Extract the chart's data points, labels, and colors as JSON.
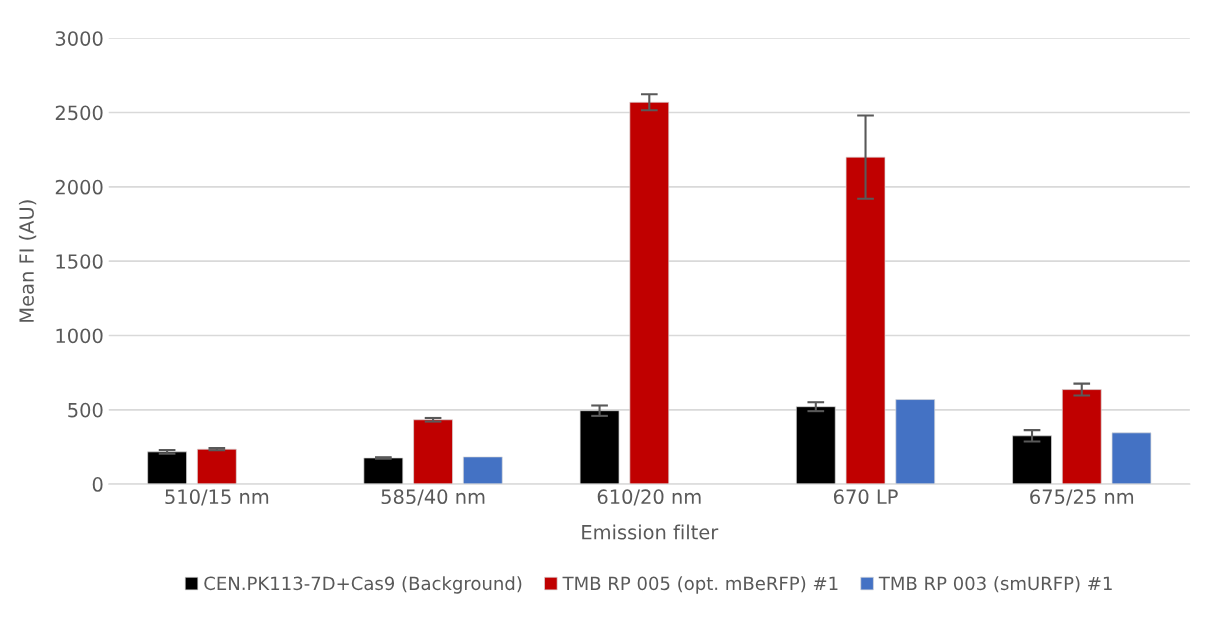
{
  "chart_data": {
    "type": "bar",
    "xlabel": "Emission filter",
    "ylabel": "Mean FI (AU)",
    "categories": [
      "510/15 nm",
      "585/40 nm",
      "610/20 nm",
      "670 LP",
      "675/25 nm"
    ],
    "series": [
      {
        "name": "CEN.PK113-7D+Cas9 (Background)",
        "color": "#000000",
        "values": [
          217,
          176,
          494,
          521,
          325
        ],
        "errors": [
          12,
          5,
          35,
          30,
          38
        ]
      },
      {
        "name": "TMB RP 005 (opt. mBeRFP) #1",
        "color": "#c00000",
        "values": [
          235,
          433,
          2569,
          2200,
          636
        ],
        "errors": [
          7,
          12,
          54,
          280,
          40
        ]
      },
      {
        "name": "TMB RP 003 (smURFP) #1",
        "color": "#4472c4",
        "values": [
          null,
          183,
          null,
          569,
          345
        ]
      }
    ],
    "ylim": [
      0,
      3000
    ],
    "yticks": [
      0,
      500,
      1000,
      1500,
      2000,
      2500,
      3000
    ],
    "grid": "y",
    "legend": "bottom"
  }
}
